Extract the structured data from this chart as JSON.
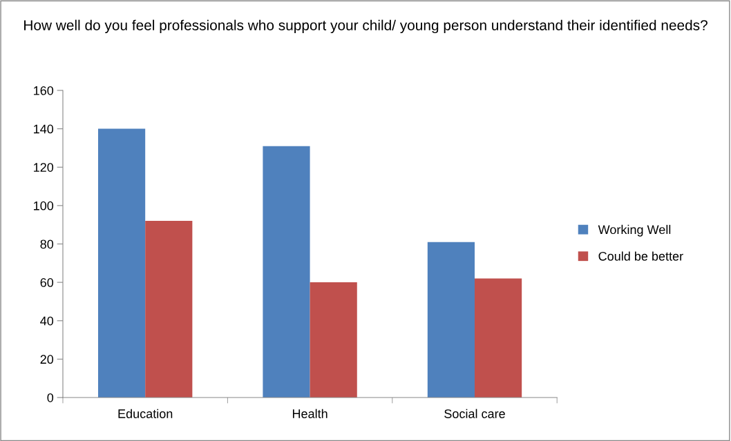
{
  "chart_data": {
    "type": "bar",
    "title": "How well do you feel professionals who support your child/ young person understand their identified needs?",
    "categories": [
      "Education",
      "Health",
      "Social care"
    ],
    "series": [
      {
        "name": "Working Well",
        "color": "#4f81bd",
        "values": [
          140,
          131,
          81
        ]
      },
      {
        "name": "Could be better",
        "color": "#c0504d",
        "values": [
          92,
          60,
          62
        ]
      }
    ],
    "ylim": [
      0,
      160
    ],
    "yticks": [
      0,
      20,
      40,
      60,
      80,
      100,
      120,
      140,
      160
    ],
    "grid": false,
    "legend": "right"
  }
}
